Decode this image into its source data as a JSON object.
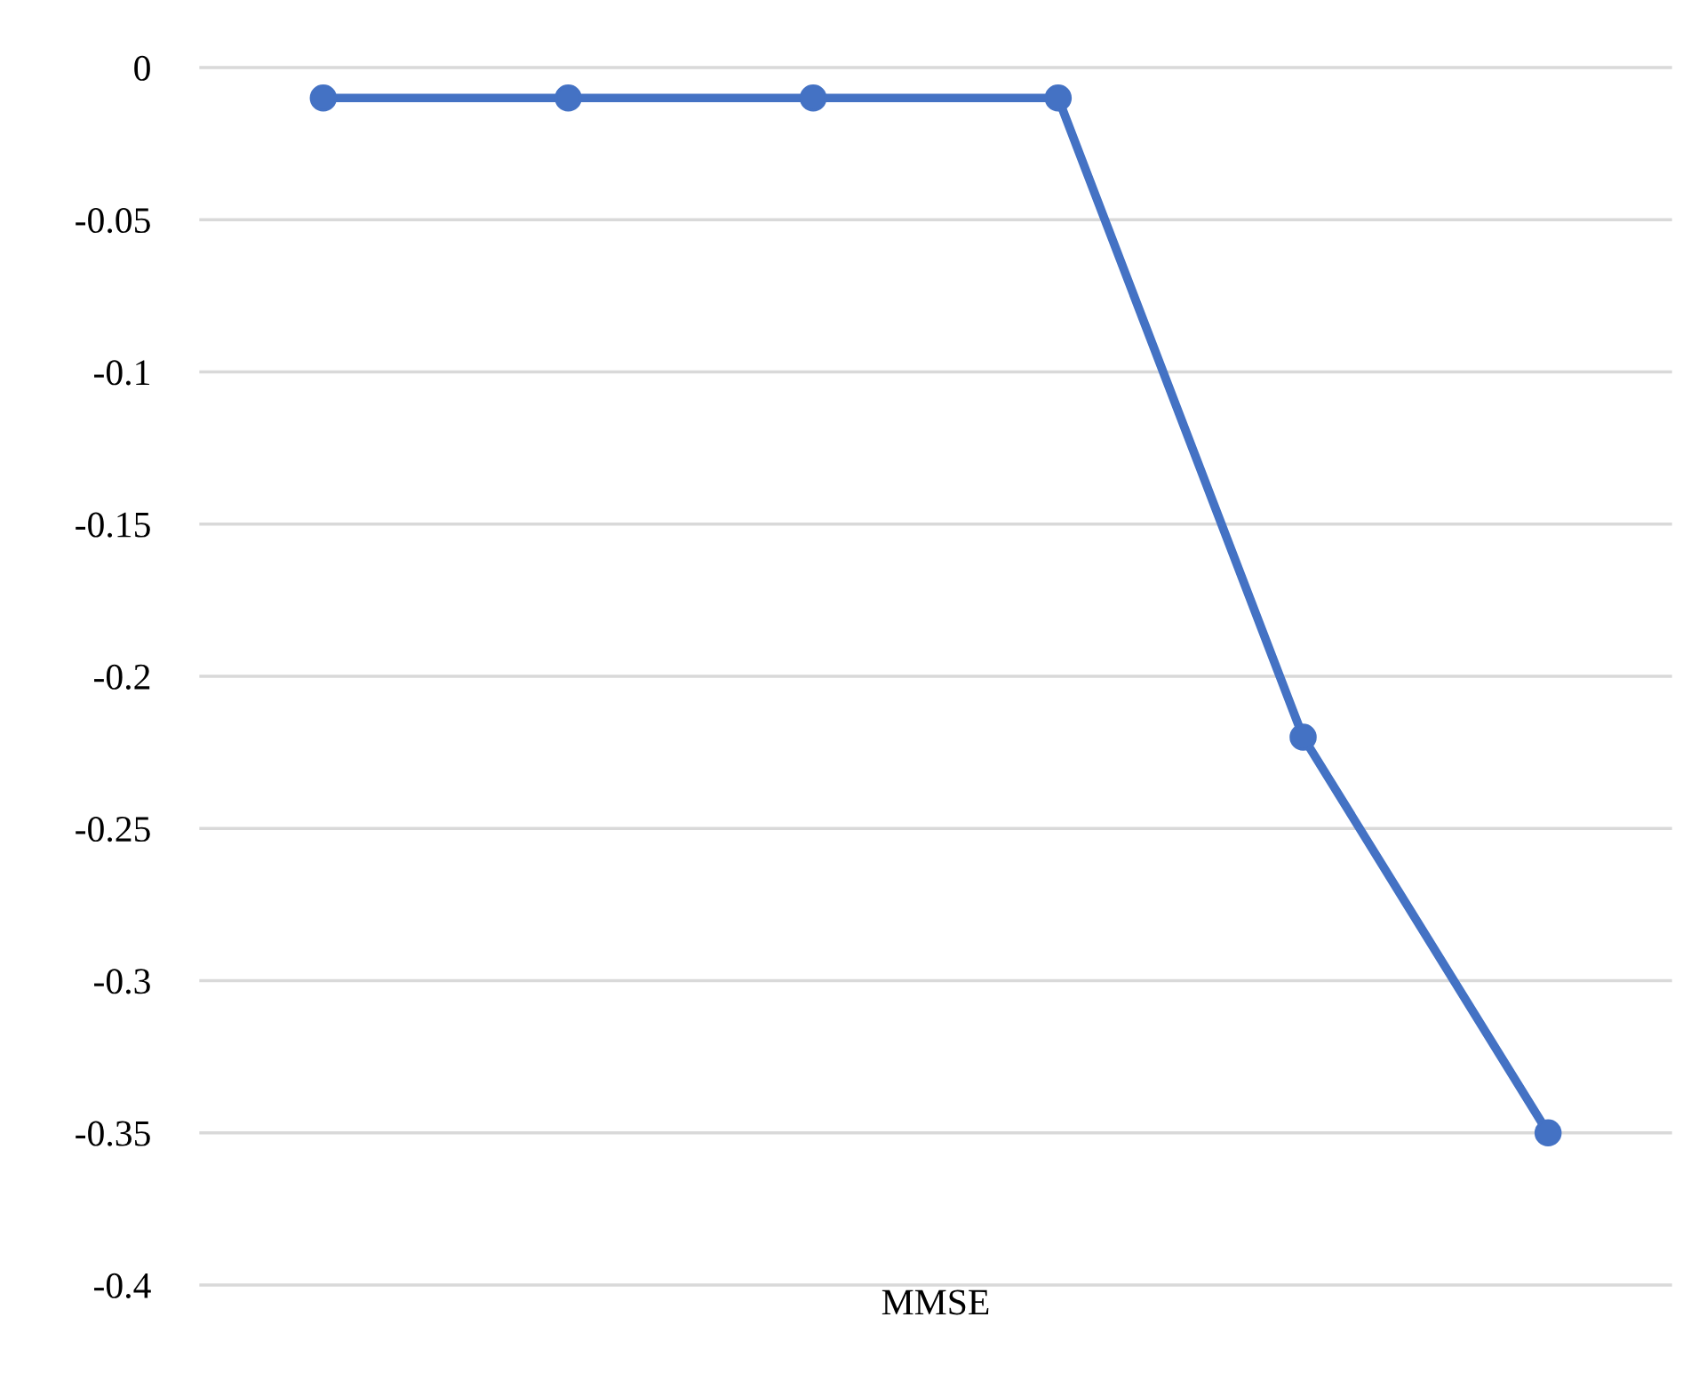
{
  "chart_data": {
    "type": "line",
    "xlabel": "MMSE",
    "categories": [
      null,
      null,
      null,
      null,
      null,
      null
    ],
    "series": [
      {
        "color": "#4472c4",
        "values": [
          -0.01,
          -0.01,
          -0.01,
          -0.01,
          -0.22,
          -0.35
        ]
      }
    ],
    "ylim": [
      -0.4,
      0
    ],
    "yticks": [
      0,
      -0.05,
      -0.1,
      -0.15,
      -0.2,
      -0.25,
      -0.3,
      -0.35,
      -0.4
    ],
    "grid": "y",
    "marker": "circle",
    "line_style": "solid",
    "legend": false
  }
}
